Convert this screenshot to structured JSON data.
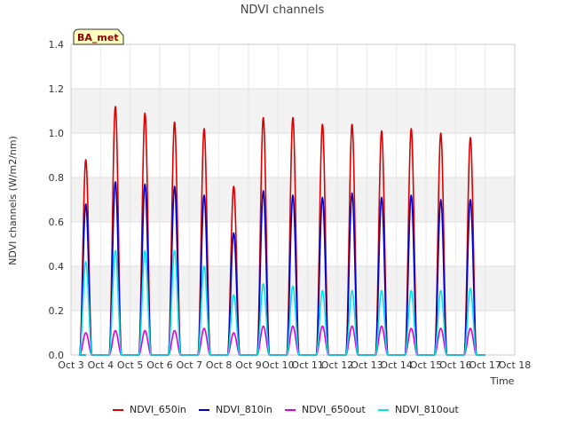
{
  "chart_data": {
    "type": "line",
    "title": "NDVI channels",
    "xlabel": "Time",
    "ylabel": "NDVI channels (W/m2/nm)",
    "ylim": [
      0,
      1.4
    ],
    "yticks": [
      0.0,
      0.2,
      0.4,
      0.6,
      0.8,
      1.0,
      1.2,
      1.4
    ],
    "ytick_labels": [
      "0.0",
      "0.2",
      "0.4",
      "0.6",
      "0.8",
      "1.0",
      "1.2",
      "1.4"
    ],
    "xlim": [
      3,
      18
    ],
    "xticks": [
      3,
      4,
      5,
      6,
      7,
      8,
      9,
      10,
      11,
      12,
      13,
      14,
      15,
      16,
      17,
      18
    ],
    "xtick_labels": [
      "Oct 3",
      "Oct 4",
      "Oct 5",
      "Oct 6",
      "Oct 7",
      "Oct 8",
      "Oct 9",
      "Oct 10",
      "Oct 11",
      "Oct 12",
      "Oct 13",
      "Oct 14",
      "Oct 15",
      "Oct 16",
      "Oct 17",
      "Oct 18"
    ],
    "peak_day_positions": [
      3.5,
      4.5,
      5.5,
      6.5,
      7.5,
      8.5,
      9.5,
      10.5,
      11.5,
      12.5,
      13.5,
      14.5,
      15.5,
      16.5
    ],
    "peak_half_width_days": 0.21,
    "series": [
      {
        "name": "NDVI_650in",
        "color": "#dd0000",
        "peaks": [
          0.88,
          1.12,
          1.09,
          1.05,
          1.02,
          0.76,
          1.07,
          1.07,
          1.04,
          1.04,
          1.01,
          1.02,
          1.0,
          0.98
        ]
      },
      {
        "name": "NDVI_810in",
        "color": "#0000cc",
        "peaks": [
          0.68,
          0.78,
          0.77,
          0.76,
          0.72,
          0.55,
          0.74,
          0.72,
          0.71,
          0.73,
          0.71,
          0.72,
          0.7,
          0.7
        ]
      },
      {
        "name": "NDVI_650out",
        "color": "#dd00dd",
        "peaks": [
          0.1,
          0.11,
          0.11,
          0.11,
          0.12,
          0.1,
          0.13,
          0.13,
          0.13,
          0.13,
          0.13,
          0.12,
          0.12,
          0.12
        ]
      },
      {
        "name": "NDVI_810out",
        "color": "#00e5e5",
        "peaks": [
          0.42,
          0.47,
          0.47,
          0.47,
          0.4,
          0.27,
          0.32,
          0.31,
          0.29,
          0.29,
          0.29,
          0.29,
          0.29,
          0.3
        ]
      }
    ],
    "legend_position": "bottom-center",
    "grid": true,
    "annotation": "BA_met"
  }
}
